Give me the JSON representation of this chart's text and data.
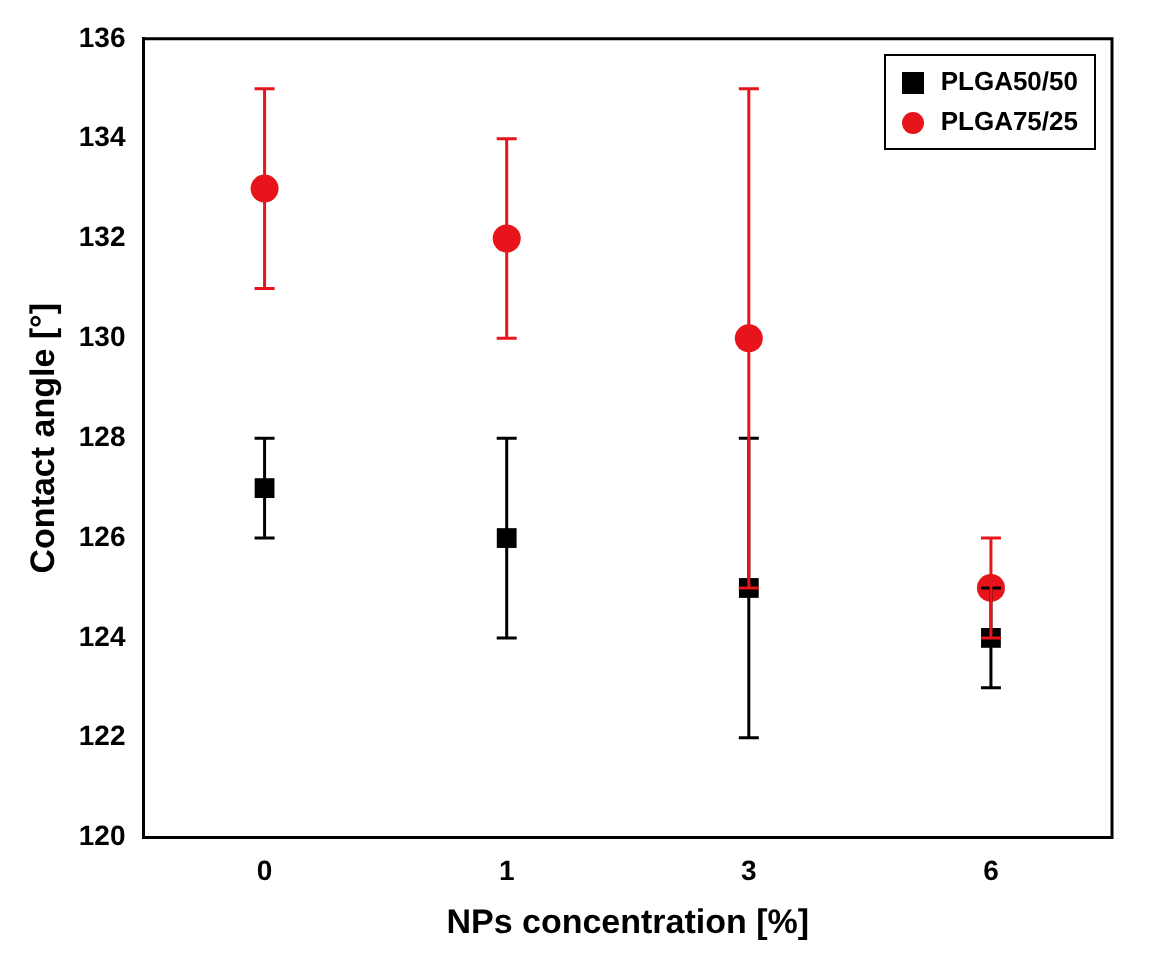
{
  "chart_data": {
    "type": "scatter",
    "xlabel": "NPs concentration [%]",
    "ylabel": "Contact angle [°]",
    "categories": [
      "0",
      "1",
      "3",
      "6"
    ],
    "series": [
      {
        "name": "PLGA50/50",
        "color": "#000000",
        "marker": "square",
        "values": [
          127,
          126,
          125,
          124
        ],
        "errors": [
          1,
          2,
          3,
          1
        ]
      },
      {
        "name": "PLGA75/25",
        "color": "#e8141b",
        "marker": "circle",
        "values": [
          133,
          132,
          130,
          125
        ],
        "errors": [
          2,
          2,
          5,
          1
        ]
      }
    ],
    "ylim": [
      120,
      136
    ],
    "yticks": [
      120,
      122,
      124,
      126,
      128,
      130,
      132,
      134,
      136
    ],
    "grid": false,
    "legend": "top right"
  }
}
